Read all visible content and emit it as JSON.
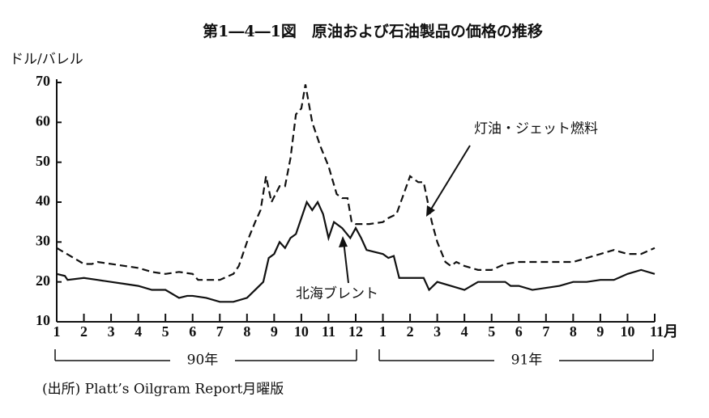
{
  "chart_data": {
    "type": "line",
    "title": "第1―4―1図　原油および石油製品の価格の推移",
    "y_label": "ドル/バレル",
    "source": "(出所) Platt’s Oilgram Report月曜版",
    "years": [
      "90年",
      "91年"
    ],
    "xlim": [
      1,
      23
    ],
    "ylim": [
      10,
      70
    ],
    "yticks": [
      10,
      20,
      30,
      40,
      50,
      60,
      70
    ],
    "xticks": [
      1,
      2,
      3,
      4,
      5,
      6,
      7,
      8,
      9,
      10,
      11,
      12,
      {
        "value": 13,
        "label": "1"
      },
      {
        "value": 14,
        "label": "2"
      },
      {
        "value": 15,
        "label": "3"
      },
      {
        "value": 16,
        "label": "4"
      },
      {
        "value": 17,
        "label": "5"
      },
      {
        "value": 18,
        "label": "6"
      },
      {
        "value": 19,
        "label": "7"
      },
      {
        "value": 20,
        "label": "8"
      },
      {
        "value": 21,
        "label": "9"
      },
      {
        "value": 22,
        "label": "10"
      },
      {
        "value": 23,
        "label": "11月"
      }
    ],
    "series": [
      {
        "name": "灯油・ジェット燃料",
        "color": "#111111",
        "style": "dashed",
        "x": [
          1,
          1.5,
          2,
          2.3,
          2.5,
          3,
          3.5,
          4,
          4.5,
          5,
          5.5,
          6,
          6.2,
          7,
          7.5,
          7.7,
          8,
          8.3,
          8.5,
          8.7,
          8.9,
          9.2,
          9.4,
          9.6,
          9.8,
          10,
          10.15,
          10.4,
          10.7,
          11,
          11.3,
          11.5,
          11.7,
          11.85,
          12,
          12.5,
          13,
          13.2,
          13.5,
          14,
          14.3,
          14.5,
          14.8,
          15,
          15.3,
          15.5,
          15.7,
          16,
          16.5,
          17,
          17.5,
          18,
          19,
          20,
          20.5,
          21,
          21.5,
          22,
          22.5,
          23
        ],
        "values": [
          28.5,
          26.5,
          24.5,
          24.5,
          25,
          24.5,
          24,
          23.5,
          22.5,
          22,
          22.5,
          22,
          20.5,
          20.5,
          22,
          24,
          30,
          35,
          38,
          46.5,
          40,
          44,
          44,
          51,
          62,
          63.5,
          69.5,
          60,
          54,
          49,
          42,
          41,
          41,
          35,
          34.5,
          34.5,
          35,
          36,
          37,
          46.5,
          45,
          45,
          35,
          30,
          25,
          24,
          25,
          24,
          23,
          23,
          24.5,
          25,
          25,
          25,
          26,
          27,
          28,
          27,
          27,
          28.5
        ]
      },
      {
        "name": "北海ブレント",
        "color": "#111111",
        "style": "solid",
        "x": [
          1,
          1.3,
          1.4,
          2,
          2.5,
          3,
          3.5,
          4,
          4.5,
          5,
          5.5,
          5.8,
          6,
          6.5,
          7,
          7.5,
          8,
          8.3,
          8.6,
          8.8,
          9,
          9.2,
          9.4,
          9.6,
          9.8,
          10,
          10.2,
          10.4,
          10.6,
          10.8,
          11,
          11.2,
          11.5,
          11.8,
          12,
          12.2,
          12.4,
          12.7,
          13,
          13.2,
          13.4,
          13.6,
          14,
          14.5,
          14.7,
          15,
          15.5,
          16,
          16.5,
          17,
          17.5,
          17.7,
          18,
          18.5,
          19,
          19.5,
          20,
          20.5,
          21,
          21.5,
          22,
          22.5,
          23
        ],
        "values": [
          22,
          21.5,
          20.5,
          21,
          20.5,
          20,
          19.5,
          19,
          18,
          18,
          16,
          16.5,
          16.5,
          16,
          15,
          15,
          16,
          18,
          20,
          26,
          27,
          30,
          28.5,
          31,
          32,
          36,
          40,
          38,
          40,
          37,
          31,
          35,
          33.5,
          31,
          33.5,
          31,
          28,
          27.5,
          27,
          26,
          26.5,
          21,
          21,
          21,
          18,
          20,
          19,
          18,
          20,
          20,
          20,
          19,
          19,
          18,
          18.5,
          19,
          20,
          20,
          20.5,
          20.5,
          22,
          23,
          22
        ]
      }
    ]
  }
}
